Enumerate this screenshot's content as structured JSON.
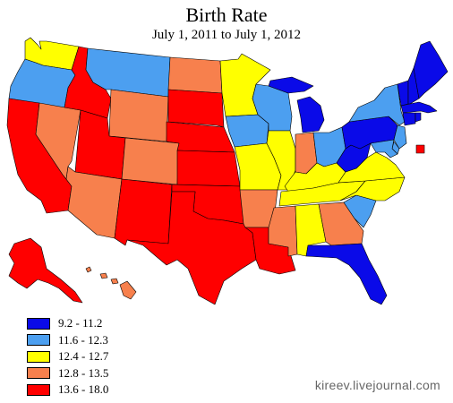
{
  "title": "Birth Rate",
  "subtitle": "July 1, 2011 to July 1, 2012",
  "credit": "kireev.livejournal.com",
  "colors": {
    "c1": "#0a0ae8",
    "c2": "#4c9ff0",
    "c3": "#ffff00",
    "c4": "#f7804d",
    "c5": "#ff0000"
  },
  "legend": [
    {
      "label": "9.2 - 11.2",
      "color_key": "c1"
    },
    {
      "label": "11.6 - 12.3",
      "color_key": "c2"
    },
    {
      "label": "12.4 - 12.7",
      "color_key": "c3"
    },
    {
      "label": "12.8 - 13.5",
      "color_key": "c4"
    },
    {
      "label": "13.6 - 18.0",
      "color_key": "c5"
    }
  ],
  "states": {
    "WA": "c3",
    "OR": "c2",
    "CA": "c5",
    "NV": "c4",
    "ID": "c5",
    "MT": "c2",
    "WY": "c4",
    "UT": "c5",
    "AZ": "c4",
    "CO": "c4",
    "NM": "c5",
    "ND": "c4",
    "SD": "c5",
    "NE": "c5",
    "KS": "c5",
    "OK": "c5",
    "TX": "c5",
    "MN": "c3",
    "IA": "c2",
    "MO": "c3",
    "AR": "c4",
    "LA": "c5",
    "WI": "c2",
    "IL": "c3",
    "MI": "c1",
    "IN": "c4",
    "OH": "c2",
    "KY": "c3",
    "TN": "c3",
    "MS": "c4",
    "AL": "c3",
    "GA": "c4",
    "FL": "c1",
    "SC": "c2",
    "NC": "c3",
    "VA": "c3",
    "WV": "c1",
    "PA": "c1",
    "NY": "c2",
    "ME": "c1",
    "NH": "c1",
    "VT": "c1",
    "MA": "c1",
    "RI": "c1",
    "CT": "c1",
    "NJ": "c2",
    "DE": "c2",
    "MD": "c2",
    "DC": "c5",
    "AK": "c5",
    "HI": "c4"
  }
}
